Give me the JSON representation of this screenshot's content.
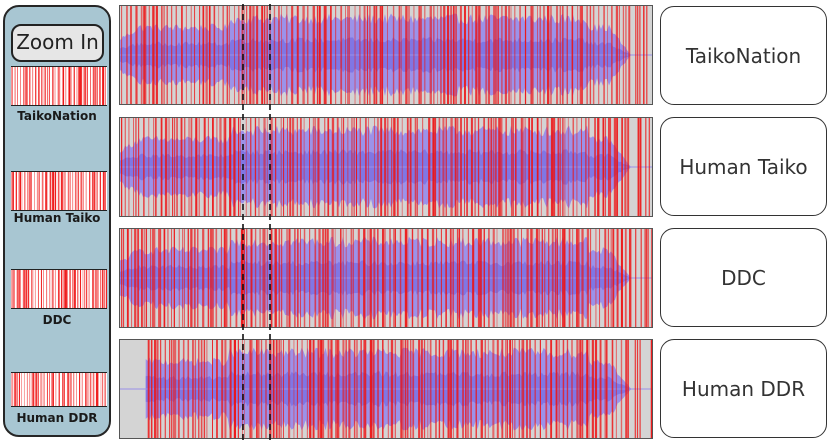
{
  "zoom": {
    "label": "Zoom In"
  },
  "tracks": [
    {
      "name": "TaikoNation",
      "color": "#7fe1e1",
      "offset": 0.0
    },
    {
      "name": "Human Taiko",
      "color": "#dcdcfa",
      "offset": 0.0
    },
    {
      "name": "DDC",
      "color": "#f4e4d6",
      "offset": 0.0
    },
    {
      "name": "Human DDR",
      "color": "#ef9c86",
      "offset": 0.05
    }
  ],
  "colors": {
    "panel_bg": "#d4d4d4",
    "waveform": "#8a7cf0",
    "note": "#ee1111",
    "sidebar_bg": "#a8c6d2"
  }
}
